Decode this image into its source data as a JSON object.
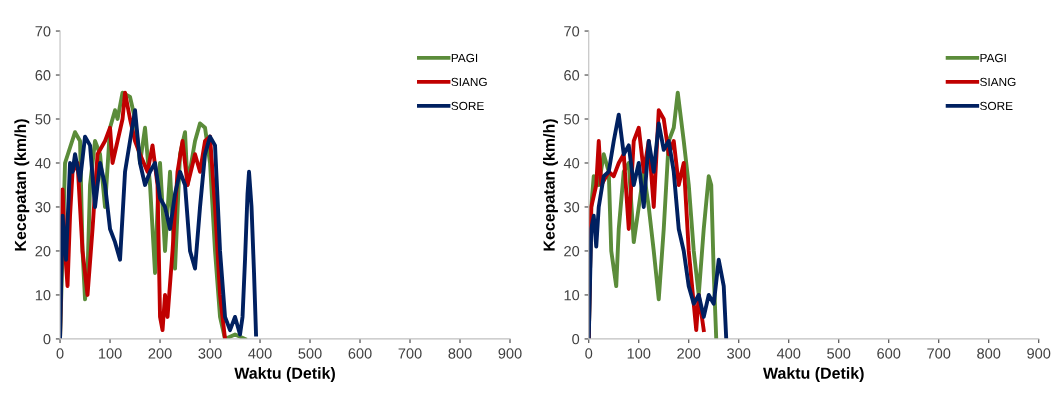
{
  "chart_data": [
    {
      "type": "line",
      "xlabel": "Waktu (Detik)",
      "ylabel": "Kecepatan (km/h)",
      "xlim": [
        0,
        900
      ],
      "xticks": [
        0,
        100,
        200,
        300,
        400,
        500,
        600,
        700,
        800,
        900
      ],
      "ylim": [
        0,
        70
      ],
      "yticks": [
        0,
        10,
        20,
        30,
        40,
        50,
        60,
        70
      ],
      "grid": false,
      "legend": "top right",
      "marker": "none",
      "line_style": "solid",
      "series": [
        {
          "name": "PAGI",
          "color": "#5b8c3a",
          "x": [
            0,
            10,
            30,
            40,
            45,
            50,
            55,
            60,
            70,
            80,
            90,
            100,
            110,
            115,
            125,
            140,
            150,
            160,
            170,
            180,
            190,
            195,
            200,
            210,
            220,
            230,
            240,
            250,
            255,
            270,
            280,
            290,
            300,
            310,
            320,
            330,
            350,
            370
          ],
          "values": [
            0,
            40,
            47,
            45,
            20,
            9,
            15,
            35,
            45,
            42,
            30,
            48,
            52,
            50,
            56,
            55,
            50,
            40,
            48,
            35,
            15,
            30,
            40,
            20,
            38,
            16,
            42,
            47,
            35,
            45,
            49,
            48,
            40,
            20,
            5,
            0,
            1,
            0
          ]
        },
        {
          "name": "SIANG",
          "color": "#c00000",
          "x": [
            0,
            5,
            10,
            15,
            20,
            25,
            35,
            40,
            45,
            55,
            65,
            75,
            90,
            100,
            105,
            115,
            125,
            130,
            140,
            150,
            160,
            175,
            185,
            195,
            200,
            205,
            210,
            215,
            225,
            235,
            245,
            255,
            270,
            280,
            290,
            300,
            310,
            320,
            330
          ],
          "values": [
            0,
            34,
            20,
            12,
            28,
            38,
            40,
            30,
            20,
            10,
            25,
            42,
            45,
            48,
            40,
            45,
            50,
            56,
            50,
            45,
            42,
            38,
            44,
            35,
            5,
            2,
            10,
            5,
            20,
            38,
            45,
            35,
            42,
            38,
            45,
            46,
            30,
            10,
            0
          ]
        },
        {
          "name": "SORE",
          "color": "#002060",
          "x": [
            0,
            5,
            12,
            20,
            25,
            30,
            40,
            50,
            60,
            70,
            80,
            90,
            100,
            110,
            120,
            130,
            140,
            150,
            160,
            170,
            180,
            190,
            200,
            210,
            220,
            230,
            240,
            250,
            260,
            270,
            280,
            290,
            300,
            310,
            320,
            330,
            340,
            350,
            360,
            365,
            370,
            375,
            378,
            383,
            388,
            392
          ],
          "values": [
            0,
            28,
            18,
            40,
            38,
            42,
            36,
            46,
            44,
            30,
            40,
            35,
            25,
            22,
            18,
            38,
            45,
            52,
            40,
            35,
            38,
            40,
            32,
            30,
            25,
            33,
            38,
            35,
            20,
            16,
            30,
            42,
            46,
            44,
            20,
            5,
            2,
            5,
            1,
            5,
            18,
            33,
            38,
            30,
            15,
            1
          ]
        }
      ]
    },
    {
      "type": "line",
      "xlabel": "Waktu (Detik)",
      "ylabel": "Kecepatan (km/h)",
      "xlim": [
        0,
        900
      ],
      "xticks": [
        0,
        100,
        200,
        300,
        400,
        500,
        600,
        700,
        800,
        900
      ],
      "ylim": [
        0,
        70
      ],
      "yticks": [
        0,
        10,
        20,
        30,
        40,
        50,
        60,
        70
      ],
      "grid": false,
      "legend": "top right",
      "marker": "none",
      "line_style": "solid",
      "series": [
        {
          "name": "PAGI",
          "color": "#5b8c3a",
          "x": [
            0,
            5,
            10,
            20,
            30,
            40,
            45,
            55,
            60,
            70,
            80,
            90,
            100,
            110,
            120,
            130,
            140,
            150,
            160,
            170,
            178,
            190,
            200,
            210,
            220,
            230,
            240,
            245,
            250,
            255
          ],
          "values": [
            0,
            30,
            37,
            35,
            42,
            38,
            20,
            12,
            25,
            38,
            40,
            22,
            30,
            38,
            30,
            20,
            9,
            25,
            45,
            48,
            56,
            45,
            35,
            20,
            10,
            25,
            37,
            35,
            15,
            0
          ]
        },
        {
          "name": "SIANG",
          "color": "#c00000",
          "x": [
            0,
            5,
            15,
            20,
            25,
            40,
            50,
            60,
            70,
            80,
            90,
            100,
            110,
            120,
            130,
            140,
            150,
            160,
            170,
            180,
            190,
            200,
            210,
            215,
            220,
            230
          ],
          "values": [
            0,
            30,
            35,
            45,
            35,
            38,
            37,
            40,
            42,
            25,
            45,
            48,
            38,
            45,
            30,
            52,
            50,
            42,
            45,
            35,
            40,
            20,
            8,
            2,
            10,
            2
          ]
        },
        {
          "name": "SORE",
          "color": "#002060",
          "x": [
            0,
            5,
            10,
            15,
            20,
            30,
            40,
            50,
            60,
            70,
            80,
            90,
            100,
            110,
            120,
            130,
            140,
            150,
            160,
            170,
            180,
            190,
            200,
            210,
            220,
            230,
            240,
            250,
            260,
            270,
            275
          ],
          "values": [
            0,
            25,
            28,
            21,
            30,
            37,
            38,
            45,
            51,
            42,
            44,
            35,
            40,
            30,
            45,
            38,
            49,
            43,
            45,
            38,
            25,
            20,
            12,
            8,
            10,
            5,
            10,
            8,
            18,
            12,
            0
          ]
        }
      ]
    }
  ]
}
